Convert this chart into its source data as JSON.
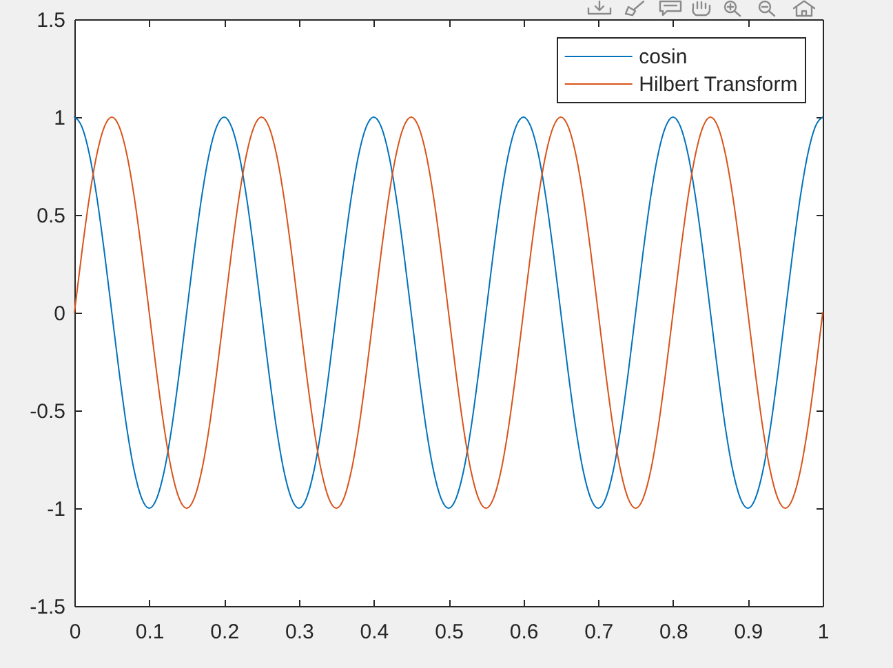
{
  "chart_data": {
    "type": "line",
    "x": [
      0,
      0.01,
      0.02,
      0.03,
      0.04,
      0.05,
      0.06,
      0.07,
      0.08,
      0.09,
      0.1,
      0.11,
      0.12,
      0.13,
      0.14,
      0.15,
      0.16,
      0.17,
      0.18,
      0.19,
      0.2,
      0.21,
      0.22,
      0.23,
      0.24,
      0.25,
      0.26,
      0.27,
      0.28,
      0.29,
      0.3,
      0.31,
      0.32,
      0.33,
      0.34,
      0.35,
      0.36,
      0.37,
      0.38,
      0.39,
      0.4,
      0.41,
      0.42,
      0.43,
      0.44,
      0.45,
      0.46,
      0.47,
      0.48,
      0.49,
      0.5,
      0.51,
      0.52,
      0.53,
      0.54,
      0.55,
      0.56,
      0.57,
      0.58,
      0.59,
      0.6,
      0.61,
      0.62,
      0.63,
      0.64,
      0.65,
      0.66,
      0.67,
      0.68,
      0.69,
      0.7,
      0.71,
      0.72,
      0.73,
      0.74,
      0.75,
      0.76,
      0.77,
      0.78,
      0.79,
      0.8,
      0.81,
      0.82,
      0.83,
      0.84,
      0.85,
      0.86,
      0.87,
      0.88,
      0.89,
      0.9,
      0.91,
      0.92,
      0.93,
      0.94,
      0.95,
      0.96,
      0.97,
      0.98,
      0.99,
      1
    ],
    "series": [
      {
        "name": "cosin",
        "color": "#0072bd",
        "values": [
          1,
          0.95,
          0.81,
          0.59,
          0.31,
          0,
          -0.31,
          -0.59,
          -0.81,
          -0.95,
          -1,
          -0.95,
          -0.81,
          -0.59,
          -0.31,
          0,
          0.31,
          0.59,
          0.81,
          0.95,
          1,
          0.95,
          0.81,
          0.59,
          0.31,
          0,
          -0.31,
          -0.59,
          -0.81,
          -0.95,
          -1,
          -0.95,
          -0.81,
          -0.59,
          -0.31,
          0,
          0.31,
          0.59,
          0.81,
          0.95,
          1,
          0.95,
          0.81,
          0.59,
          0.31,
          0,
          -0.31,
          -0.59,
          -0.81,
          -0.95,
          -1,
          -0.95,
          -0.81,
          -0.59,
          -0.31,
          0,
          0.31,
          0.59,
          0.81,
          0.95,
          1,
          0.95,
          0.81,
          0.59,
          0.31,
          0,
          -0.31,
          -0.59,
          -0.81,
          -0.95,
          -1,
          -0.95,
          -0.81,
          -0.59,
          -0.31,
          0,
          0.31,
          0.59,
          0.81,
          0.95,
          1,
          0.95,
          0.81,
          0.59,
          0.31,
          0,
          -0.31,
          -0.59,
          -0.81,
          -0.95,
          -1,
          -0.95,
          -0.81,
          -0.59,
          -0.31,
          0,
          0.31,
          0.59,
          0.81,
          0.95,
          1
        ]
      },
      {
        "name": "Hilbert Transform",
        "color": "#d95319",
        "values": [
          0,
          0.31,
          0.59,
          0.81,
          0.95,
          1,
          0.95,
          0.81,
          0.59,
          0.31,
          0,
          -0.31,
          -0.59,
          -0.81,
          -0.95,
          -1,
          -0.95,
          -0.81,
          -0.59,
          -0.31,
          0,
          0.31,
          0.59,
          0.81,
          0.95,
          1,
          0.95,
          0.81,
          0.59,
          0.31,
          0,
          -0.31,
          -0.59,
          -0.81,
          -0.95,
          -1,
          -0.95,
          -0.81,
          -0.59,
          -0.31,
          0,
          0.31,
          0.59,
          0.81,
          0.95,
          1,
          0.95,
          0.81,
          0.59,
          0.31,
          0,
          -0.31,
          -0.59,
          -0.81,
          -0.95,
          -1,
          -0.95,
          -0.81,
          -0.59,
          -0.31,
          0,
          0.31,
          0.59,
          0.81,
          0.95,
          1,
          0.95,
          0.81,
          0.59,
          0.31,
          0,
          -0.31,
          -0.59,
          -0.81,
          -0.95,
          -1,
          -0.95,
          -0.81,
          -0.59,
          -0.31,
          0,
          0.31,
          0.59,
          0.81,
          0.95,
          1,
          0.95,
          0.81,
          0.59,
          0.31,
          0,
          -0.31,
          -0.59,
          -0.81,
          -0.95,
          -1,
          -0.95,
          -0.81,
          -0.59,
          -0.31,
          0
        ]
      }
    ],
    "xlim": [
      0,
      1
    ],
    "xticks": [
      0,
      0.1,
      0.2,
      0.3,
      0.4,
      0.5,
      0.6,
      0.7,
      0.8,
      0.9,
      1
    ],
    "ylim": [
      -1.5,
      1.5
    ],
    "yticks": [
      -1.5,
      -1,
      -0.5,
      0,
      0.5,
      1,
      1.5
    ],
    "grid": false,
    "legend": "top right",
    "marker": "none",
    "line_style": "solid"
  }
}
